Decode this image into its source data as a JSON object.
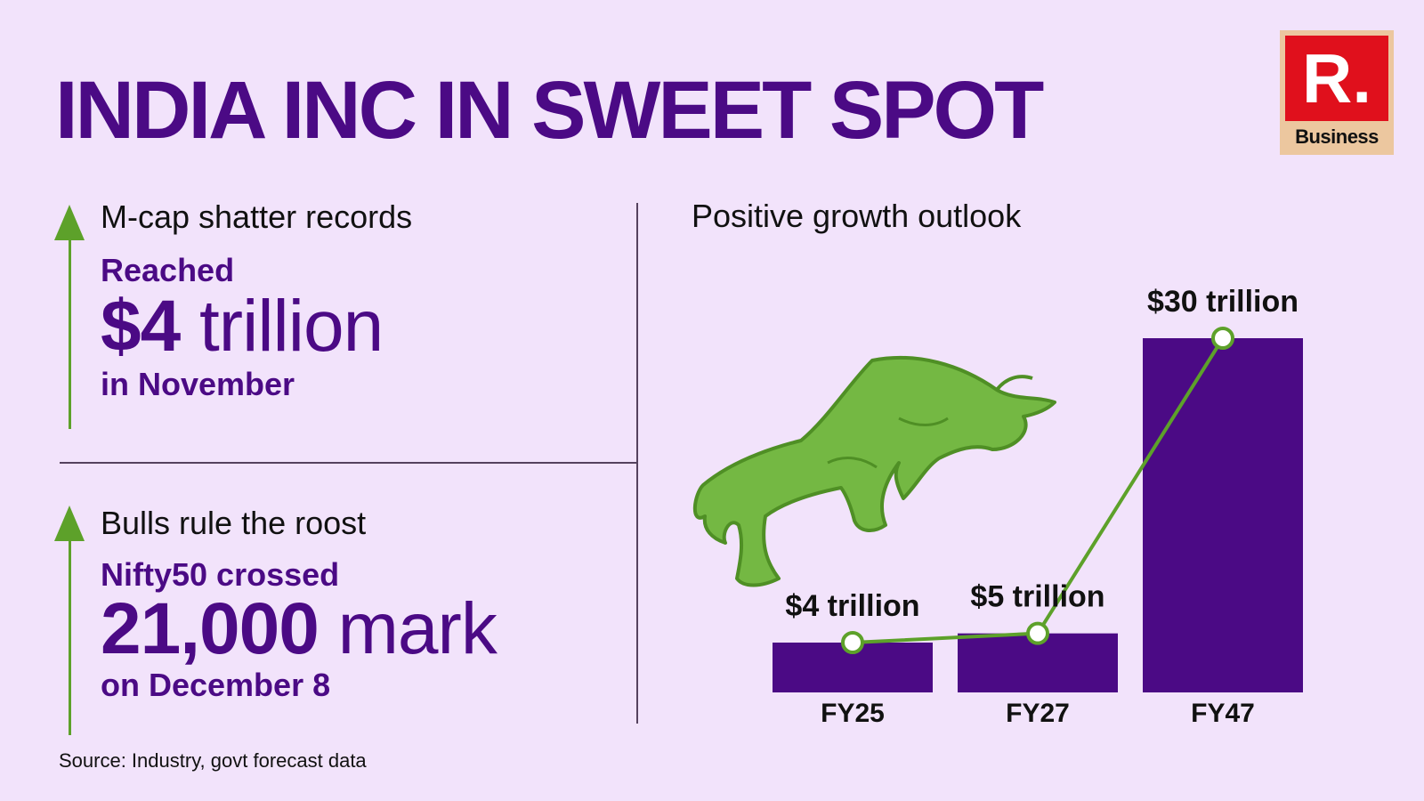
{
  "title": "INDIA INC IN SWEET SPOT",
  "logo": {
    "mark": "R.",
    "label": "Business"
  },
  "left": {
    "top": {
      "heading": "M-cap shatter records",
      "pre": "Reached",
      "big_value": "$4",
      "big_unit": "trillion",
      "post": "in November"
    },
    "bottom": {
      "heading": "Bulls rule the roost",
      "pre": "Nifty50 crossed",
      "big_value": "21,000",
      "big_unit": "mark",
      "post": "on December 8"
    }
  },
  "source": "Source: Industry, govt forecast data",
  "icons": [
    "up-arrow-icon",
    "bull-icon"
  ],
  "colors": {
    "background": "#f2e3fb",
    "accent": "#4b0a85",
    "green": "#5da12a",
    "bar": "#4b0a85",
    "logo_red": "#e0101c"
  },
  "chart_data": {
    "type": "bar",
    "title": "Positive growth outlook",
    "categories": [
      "FY25",
      "FY27",
      "FY47"
    ],
    "values": [
      4,
      5,
      30
    ],
    "labels": [
      "$4 trillion",
      "$5 trillion",
      "$30 trillion"
    ],
    "unit": "trillion USD",
    "overlay_line": true,
    "grid": false,
    "legend": "none"
  }
}
